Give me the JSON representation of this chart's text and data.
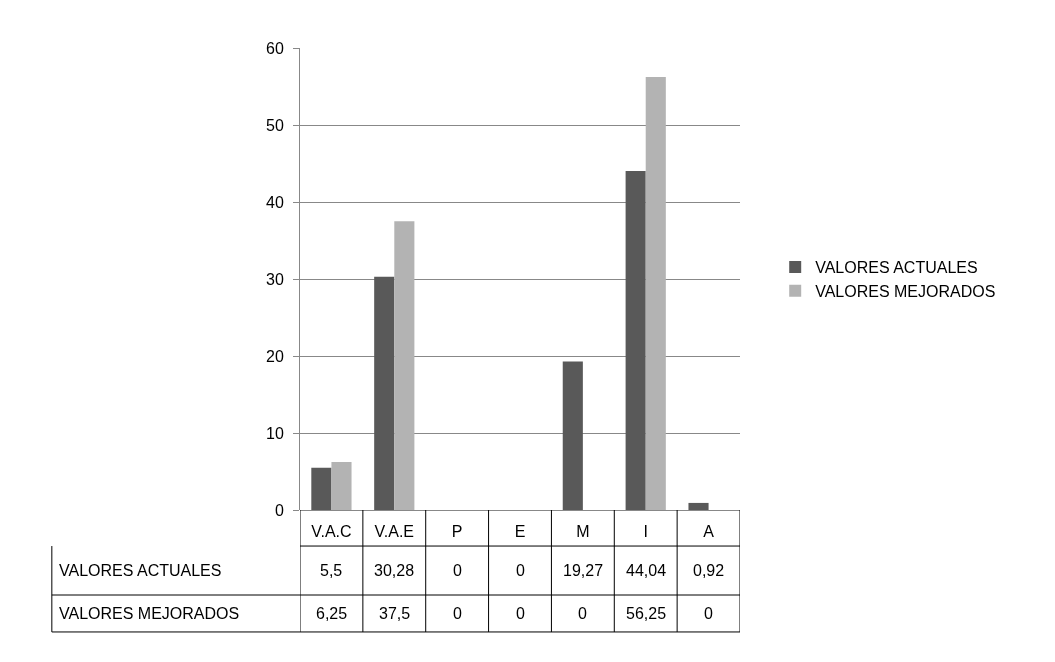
{
  "chart_data": {
    "type": "bar",
    "categories": [
      "V.A.C",
      "V.A.E",
      "P",
      "E",
      "M",
      "I",
      "A"
    ],
    "series": [
      {
        "name": "VALORES ACTUALES",
        "color": "#595959",
        "values": [
          5.5,
          30.28,
          0,
          0,
          19.27,
          44.04,
          0.92
        ],
        "value_labels": [
          "5,5",
          "30,28",
          "0",
          "0",
          "19,27",
          "44,04",
          "0,92"
        ]
      },
      {
        "name": "VALORES MEJORADOS",
        "color": "#b3b3b3",
        "values": [
          6.25,
          37.5,
          0,
          0,
          0,
          56.25,
          0
        ],
        "value_labels": [
          "6,25",
          "37,5",
          "0",
          "0",
          "0",
          "56,25",
          "0"
        ]
      }
    ],
    "ylim": [
      0,
      60
    ],
    "yticks": [
      0,
      10,
      20,
      30,
      40,
      50,
      60
    ],
    "grid": "y",
    "legend": "right"
  }
}
